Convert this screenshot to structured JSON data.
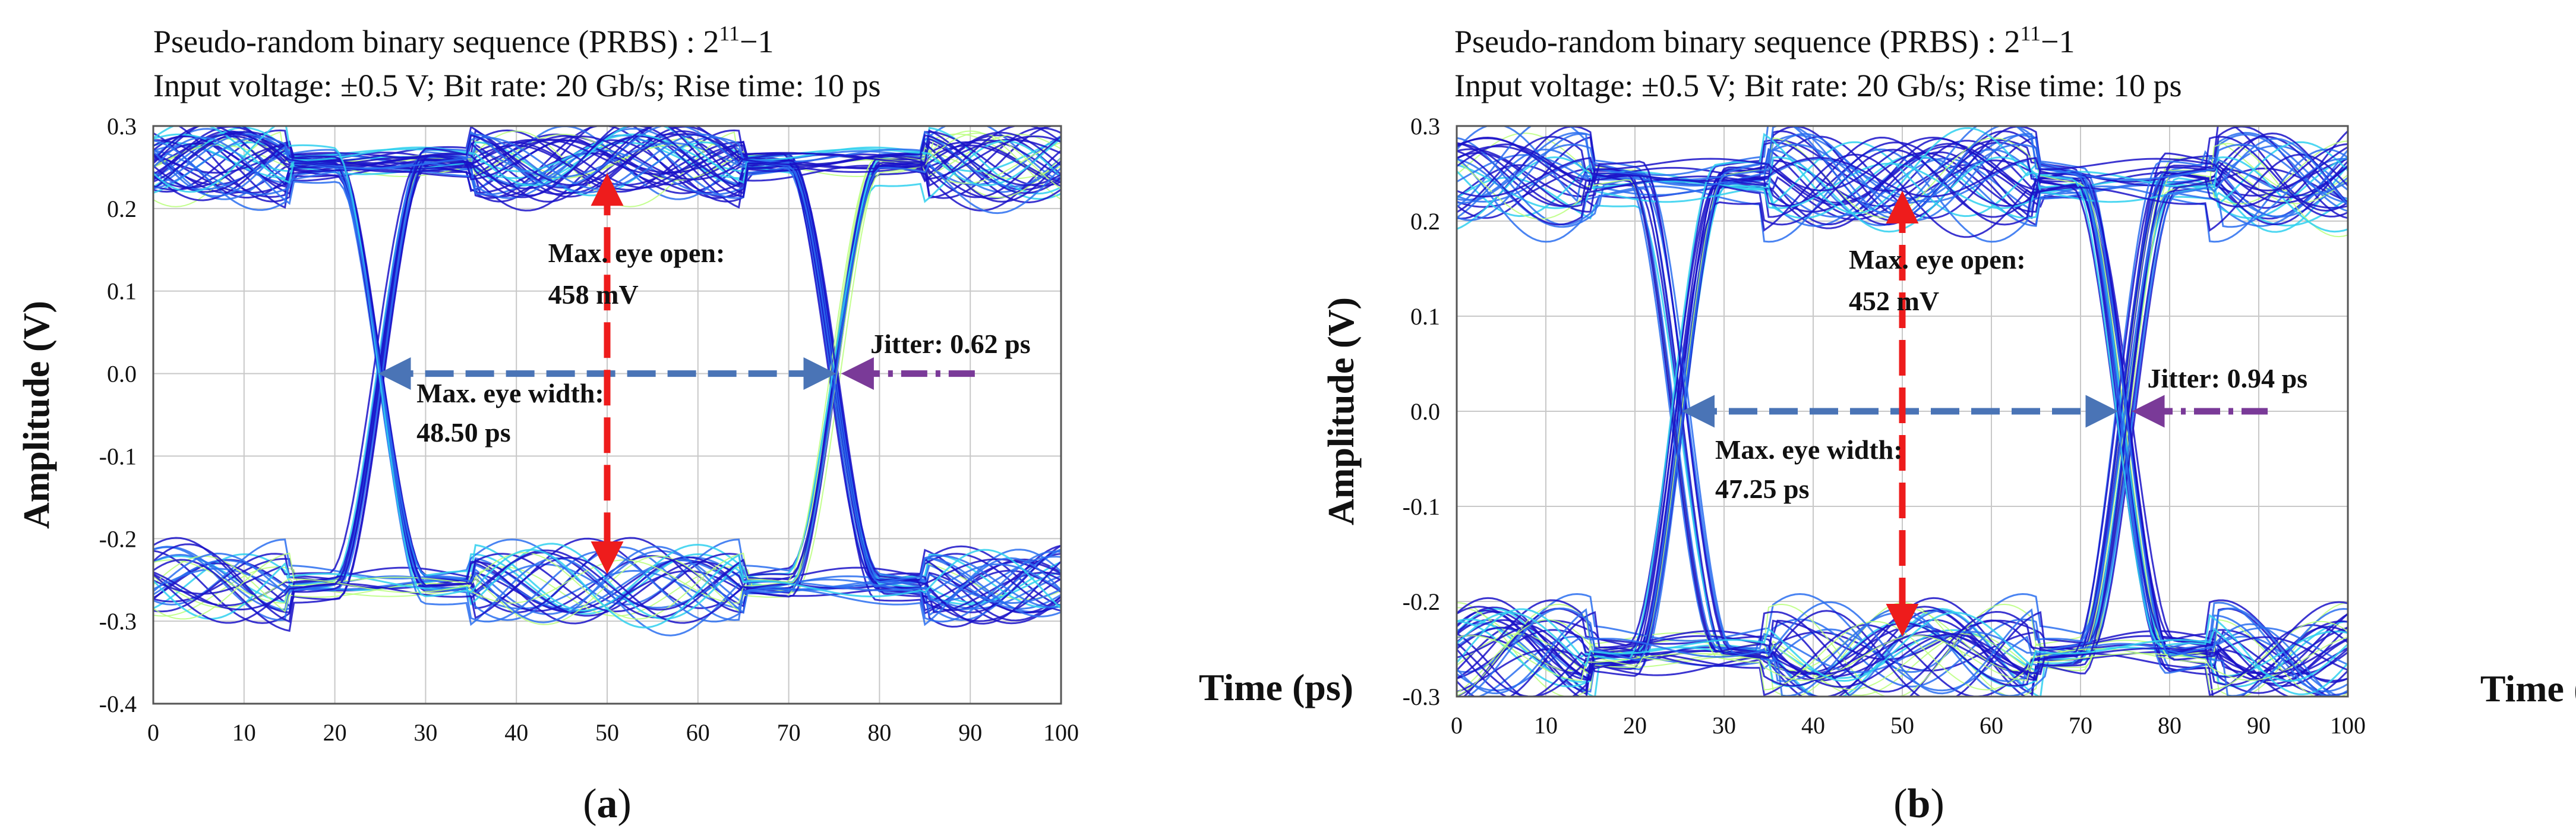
{
  "colors": {
    "eye_dark": "#1a12c8",
    "eye_mid": "#2a6ff0",
    "eye_light": "#2fd0ee",
    "eye_hot": "#b8ff7a",
    "width_arrow": "#4a74b6",
    "open_arrow": "#ee1c1c",
    "jitter_arrow": "#7a3a98",
    "grid": "#c8c8c8"
  },
  "chart_data": [
    {
      "type": "eye-diagram",
      "panel_label": "a",
      "title": "Pseudo-random binary sequence (PRBS) : 2¹¹−1",
      "title_base": "Pseudo-random binary sequence (PRBS) : 2",
      "title_exp": "11",
      "title_tail": "−1",
      "subtitle": "Input voltage: ±0.5 V; Bit rate: 20 Gb/s; Rise time: 10 ps",
      "xlabel": "Time (ps)",
      "ylabel": "Amplitude  (V)",
      "xlim": [
        0,
        100
      ],
      "ylim": [
        -0.4,
        0.3
      ],
      "x_ticks": [
        0,
        10,
        20,
        30,
        40,
        50,
        60,
        70,
        80,
        90,
        100
      ],
      "y_ticks": [
        0.3,
        0.2,
        0.1,
        0.0,
        -0.1,
        -0.2,
        -0.3,
        -0.4
      ],
      "x_tick_labels": [
        "0",
        "10",
        "20",
        "30",
        "40",
        "50",
        "60",
        "70",
        "80",
        "90",
        "100"
      ],
      "y_tick_labels": [
        "0.3",
        "0.2",
        "0.1",
        "0.0",
        "-0.1",
        "-0.2",
        "-0.3",
        "-0.4"
      ],
      "levels": {
        "high": 0.255,
        "low": -0.255,
        "spread": 0.035
      },
      "crossings": [
        25,
        75
      ],
      "crossing_spread": 0.8,
      "eye_width": {
        "from": 25.5,
        "to": 74.5,
        "y": 0.0,
        "text_line1": "Max. eye width:",
        "text_line2": "48.50 ps",
        "text_x": 29,
        "text_y": -0.035
      },
      "eye_open": {
        "x": 50,
        "from": 0.235,
        "to": -0.235,
        "text_line1": "Max. eye open:",
        "text_line2": "458 mV",
        "text_x": 43.5,
        "text_y": 0.135
      },
      "jitter": {
        "from": 90.5,
        "to": 76.5,
        "y": 0.0,
        "text": "Jitter: 0.62 ps",
        "text_x": 79,
        "text_y": 0.025
      }
    },
    {
      "type": "eye-diagram",
      "panel_label": "b",
      "title": "Pseudo-random binary sequence (PRBS) : 2¹¹−1",
      "title_base": "Pseudo-random binary sequence (PRBS) : 2",
      "title_exp": "11",
      "title_tail": "−1",
      "subtitle": "Input voltage: ±0.5 V; Bit rate: 20 Gb/s; Rise time: 10 ps",
      "xlabel": "Time (ps)",
      "ylabel": "Amplitude  (V)",
      "xlim": [
        0,
        100
      ],
      "ylim": [
        -0.3,
        0.3
      ],
      "x_ticks": [
        0,
        10,
        20,
        30,
        40,
        50,
        60,
        70,
        80,
        90,
        100
      ],
      "y_ticks": [
        0.3,
        0.2,
        0.1,
        0.0,
        -0.1,
        -0.2,
        -0.3
      ],
      "x_tick_labels": [
        "0",
        "10",
        "20",
        "30",
        "40",
        "50",
        "60",
        "70",
        "80",
        "90",
        "100"
      ],
      "y_tick_labels": [
        "0.3",
        "0.2",
        "0.1",
        "0.0",
        "-0.1",
        "-0.2",
        "-0.3"
      ],
      "levels": {
        "high": 0.245,
        "low": -0.255,
        "spread": 0.045
      },
      "crossings": [
        25,
        75
      ],
      "crossing_spread": 1.5,
      "eye_width": {
        "from": 26,
        "to": 73.5,
        "y": 0.0,
        "text_line1": "Max. eye width:",
        "text_line2": "47.25 ps",
        "text_x": 29,
        "text_y": -0.05
      },
      "eye_open": {
        "x": 50,
        "from": 0.225,
        "to": -0.23,
        "text_line1": "Max. eye open:",
        "text_line2": "452 mV",
        "text_x": 44,
        "text_y": 0.15
      },
      "jitter": {
        "from": 91,
        "to": 76.5,
        "y": 0.0,
        "text": "Jitter: 0.94 ps",
        "text_x": 77.5,
        "text_y": 0.025
      }
    }
  ]
}
